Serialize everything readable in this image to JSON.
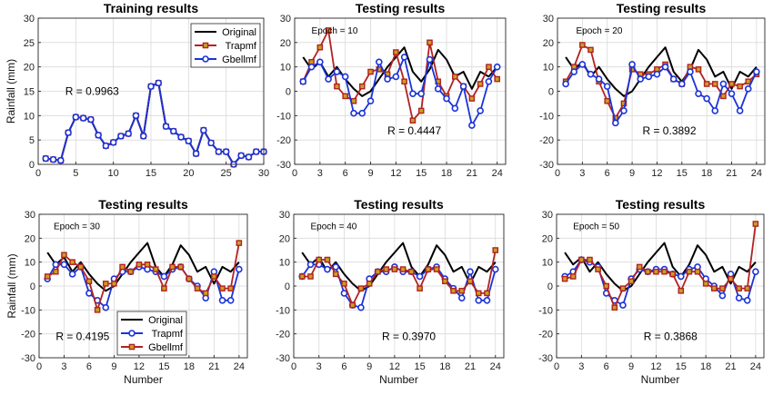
{
  "colors": {
    "original": "#000000",
    "trap": "#b22222",
    "trap_marker": "#c8a020",
    "gbell": "#1a33d9"
  },
  "chart_data": [
    {
      "type": "line",
      "title": "Training results",
      "ylabel": "Rainfall (mm)",
      "xlabel": "",
      "xlim": [
        0,
        30
      ],
      "ylim": [
        0,
        30
      ],
      "xticks": [
        0,
        5,
        10,
        15,
        20,
        25,
        30
      ],
      "yticks": [
        0,
        5,
        10,
        15,
        20,
        25,
        30
      ],
      "annotation": "R = 0.9963",
      "epoch": "",
      "legend": [
        "Original",
        "Trapmf",
        "Gbellmf"
      ],
      "legend_position": "top-right",
      "x": [
        1,
        2,
        3,
        4,
        5,
        6,
        7,
        8,
        9,
        10,
        11,
        12,
        13,
        14,
        15,
        16,
        17,
        18,
        19,
        20,
        21,
        22,
        23,
        24,
        25,
        26,
        27,
        28,
        29,
        30
      ],
      "series": [
        {
          "name": "Original",
          "values": [
            1.2,
            1,
            0.8,
            6.5,
            9.7,
            9.5,
            9.2,
            6,
            3.8,
            4.5,
            5.8,
            6.3,
            10,
            5.8,
            16,
            16.7,
            7.8,
            6.8,
            5.6,
            4.8,
            2.2,
            7,
            4.4,
            2.6,
            2.6,
            0,
            1.8,
            1.5,
            2.6,
            2.6
          ]
        },
        {
          "name": "Trapmf",
          "values": [
            1.2,
            1,
            0.8,
            6.5,
            9.7,
            9.5,
            9.2,
            6,
            3.8,
            4.5,
            5.8,
            6.3,
            10,
            5.8,
            16,
            16.7,
            7.8,
            6.8,
            5.6,
            4.8,
            2.2,
            7,
            4.4,
            2.6,
            2.6,
            0,
            1.8,
            1.5,
            2.6,
            2.6
          ]
        },
        {
          "name": "Gbellmf",
          "values": [
            1.2,
            1,
            0.8,
            6.5,
            9.7,
            9.5,
            9.2,
            6,
            3.8,
            4.5,
            5.8,
            6.3,
            10,
            5.8,
            16,
            16.7,
            7.8,
            6.8,
            5.6,
            4.8,
            2.2,
            7,
            4.4,
            2.6,
            2.6,
            0,
            1.8,
            1.5,
            2.6,
            2.6
          ]
        }
      ]
    },
    {
      "type": "line",
      "title": "Testing results",
      "ylabel": "",
      "xlabel": "",
      "xlim": [
        0,
        25
      ],
      "ylim": [
        -30,
        30
      ],
      "xticks": [
        0,
        3,
        6,
        9,
        12,
        15,
        18,
        21,
        24
      ],
      "yticks": [
        -30,
        -20,
        -10,
        0,
        10,
        20,
        30
      ],
      "annotation": "R = 0.4447",
      "epoch": "Epoch = 10",
      "legend": [],
      "legend_position": "",
      "x": [
        1,
        2,
        3,
        4,
        5,
        6,
        7,
        8,
        9,
        10,
        11,
        12,
        13,
        14,
        15,
        16,
        17,
        18,
        19,
        20,
        21,
        22,
        23,
        24
      ],
      "series": [
        {
          "name": "Original",
          "values": [
            14,
            9,
            12,
            6,
            10,
            5,
            1,
            -2,
            0,
            5,
            10,
            14,
            18,
            8,
            4,
            9,
            17,
            13,
            6,
            8,
            1,
            8,
            6,
            10
          ]
        },
        {
          "name": "Trapmf",
          "values": [
            4,
            12,
            18,
            25,
            2,
            -2,
            -4,
            2,
            8,
            9,
            7,
            16,
            4,
            -12,
            -8,
            20,
            4,
            -2,
            6,
            2,
            -3,
            3,
            10,
            5
          ]
        },
        {
          "name": "Gbellmf",
          "values": [
            4,
            10,
            12,
            5,
            8,
            6,
            -9,
            -9,
            -4,
            12,
            5,
            6,
            14,
            -1,
            -1,
            13,
            1,
            -3,
            -7,
            2,
            -14,
            -8,
            4,
            10
          ]
        }
      ]
    },
    {
      "type": "line",
      "title": "Testing results",
      "ylabel": "",
      "xlabel": "",
      "xlim": [
        0,
        25
      ],
      "ylim": [
        -30,
        30
      ],
      "xticks": [
        0,
        3,
        6,
        9,
        12,
        15,
        18,
        21,
        24
      ],
      "yticks": [
        -30,
        -20,
        -10,
        0,
        10,
        20,
        30
      ],
      "annotation": "R = 0.3892",
      "epoch": "Epoch = 20",
      "legend": [],
      "legend_position": "",
      "x": [
        1,
        2,
        3,
        4,
        5,
        6,
        7,
        8,
        9,
        10,
        11,
        12,
        13,
        14,
        15,
        16,
        17,
        18,
        19,
        20,
        21,
        22,
        23,
        24
      ],
      "series": [
        {
          "name": "Original",
          "values": [
            14,
            9,
            12,
            6,
            10,
            5,
            1,
            -2,
            0,
            5,
            10,
            14,
            18,
            8,
            4,
            9,
            17,
            13,
            6,
            8,
            1,
            8,
            6,
            10
          ]
        },
        {
          "name": "Trapmf",
          "values": [
            4,
            10,
            19,
            17,
            4,
            -4,
            -11,
            -5,
            9,
            7,
            7,
            9,
            11,
            5,
            3,
            10,
            9,
            3,
            3,
            -2,
            3,
            2,
            4,
            7
          ]
        },
        {
          "name": "Gbellmf",
          "values": [
            3,
            8,
            11,
            7,
            5,
            2,
            -13,
            -8,
            11,
            5,
            6,
            7,
            10,
            5,
            3,
            8,
            -1,
            -3,
            -8,
            3,
            -1,
            -8,
            1,
            8
          ]
        }
      ]
    },
    {
      "type": "line",
      "title": "Testing results",
      "ylabel": "Rainfall (mm)",
      "xlabel": "Number",
      "xlim": [
        0,
        25
      ],
      "ylim": [
        -30,
        30
      ],
      "xticks": [
        0,
        3,
        6,
        9,
        12,
        15,
        18,
        21,
        24
      ],
      "yticks": [
        -30,
        -20,
        -10,
        0,
        10,
        20,
        30
      ],
      "annotation": "R = 0.4195",
      "epoch": "Epoch = 30",
      "legend": [
        "Original",
        "Trapmf",
        "Gbellmf"
      ],
      "legend_position": "bottom-left",
      "x": [
        1,
        2,
        3,
        4,
        5,
        6,
        7,
        8,
        9,
        10,
        11,
        12,
        13,
        14,
        15,
        16,
        17,
        18,
        19,
        20,
        21,
        22,
        23,
        24
      ],
      "series": [
        {
          "name": "Original",
          "values": [
            14,
            9,
            12,
            6,
            10,
            5,
            1,
            -2,
            0,
            5,
            10,
            14,
            18,
            8,
            4,
            9,
            17,
            13,
            6,
            8,
            1,
            8,
            6,
            10
          ]
        },
        {
          "name": "Trapmf",
          "values": [
            3,
            9,
            9,
            5,
            8,
            -3,
            -6,
            -9,
            3,
            6,
            6,
            8,
            7,
            6,
            4,
            7,
            8,
            3,
            0,
            -5,
            6,
            -6,
            -6,
            7
          ]
        },
        {
          "name": "Gbellmf",
          "values": [
            4,
            6,
            13,
            10,
            8,
            2,
            -10,
            1,
            1,
            8,
            6,
            9,
            9,
            7,
            -1,
            8,
            8,
            3,
            -1,
            -3,
            4,
            -1,
            -1,
            18
          ]
        }
      ]
    },
    {
      "type": "line",
      "title": "Testing results",
      "ylabel": "",
      "xlabel": "Number",
      "xlim": [
        0,
        25
      ],
      "ylim": [
        -30,
        30
      ],
      "xticks": [
        0,
        3,
        6,
        9,
        12,
        15,
        18,
        21,
        24
      ],
      "yticks": [
        -30,
        -20,
        -10,
        0,
        10,
        20,
        30
      ],
      "annotation": "R = 0.3970",
      "epoch": "Epoch = 40",
      "legend": [],
      "legend_position": "",
      "x": [
        1,
        2,
        3,
        4,
        5,
        6,
        7,
        8,
        9,
        10,
        11,
        12,
        13,
        14,
        15,
        16,
        17,
        18,
        19,
        20,
        21,
        22,
        23,
        24
      ],
      "series": [
        {
          "name": "Original",
          "values": [
            14,
            9,
            12,
            6,
            10,
            5,
            1,
            -2,
            0,
            5,
            10,
            14,
            18,
            8,
            4,
            9,
            17,
            13,
            6,
            8,
            1,
            8,
            6,
            10
          ]
        },
        {
          "name": "Trapmf",
          "values": [
            4,
            9,
            9,
            7,
            8,
            -3,
            -8,
            -9,
            3,
            6,
            6,
            8,
            6,
            6,
            4,
            7,
            8,
            3,
            -1,
            -5,
            6,
            -6,
            -6,
            7
          ]
        },
        {
          "name": "Gbellmf",
          "values": [
            4,
            4,
            11,
            11,
            5,
            1,
            -8,
            -1,
            1,
            6,
            7,
            7,
            7,
            6,
            -1,
            7,
            7,
            2,
            -2,
            -2,
            2,
            -3,
            -3,
            15
          ]
        }
      ]
    },
    {
      "type": "line",
      "title": "Testing results",
      "ylabel": "",
      "xlabel": "Number",
      "xlim": [
        0,
        25
      ],
      "ylim": [
        -30,
        30
      ],
      "xticks": [
        0,
        3,
        6,
        9,
        12,
        15,
        18,
        21,
        24
      ],
      "yticks": [
        -30,
        -20,
        -10,
        0,
        10,
        20,
        30
      ],
      "annotation": "R = 0.3868",
      "epoch": "Epoch = 50",
      "legend": [],
      "legend_position": "",
      "x": [
        1,
        2,
        3,
        4,
        5,
        6,
        7,
        8,
        9,
        10,
        11,
        12,
        13,
        14,
        15,
        16,
        17,
        18,
        19,
        20,
        21,
        22,
        23,
        24
      ],
      "series": [
        {
          "name": "Original",
          "values": [
            14,
            9,
            12,
            6,
            10,
            5,
            1,
            -2,
            0,
            5,
            10,
            14,
            18,
            8,
            4,
            9,
            17,
            13,
            6,
            8,
            1,
            8,
            6,
            10
          ]
        },
        {
          "name": "Trapmf",
          "values": [
            4,
            6,
            11,
            10,
            8,
            -3,
            -6,
            -8,
            3,
            7,
            6,
            7,
            7,
            5,
            4,
            7,
            8,
            3,
            0,
            -4,
            5,
            -5,
            -6,
            6
          ]
        },
        {
          "name": "Gbellmf",
          "values": [
            3,
            4,
            11,
            11,
            7,
            0,
            -9,
            -1,
            2,
            8,
            6,
            6,
            6,
            5,
            -2,
            6,
            6,
            1,
            -1,
            -1,
            3,
            -1,
            -1,
            26
          ]
        }
      ]
    }
  ]
}
